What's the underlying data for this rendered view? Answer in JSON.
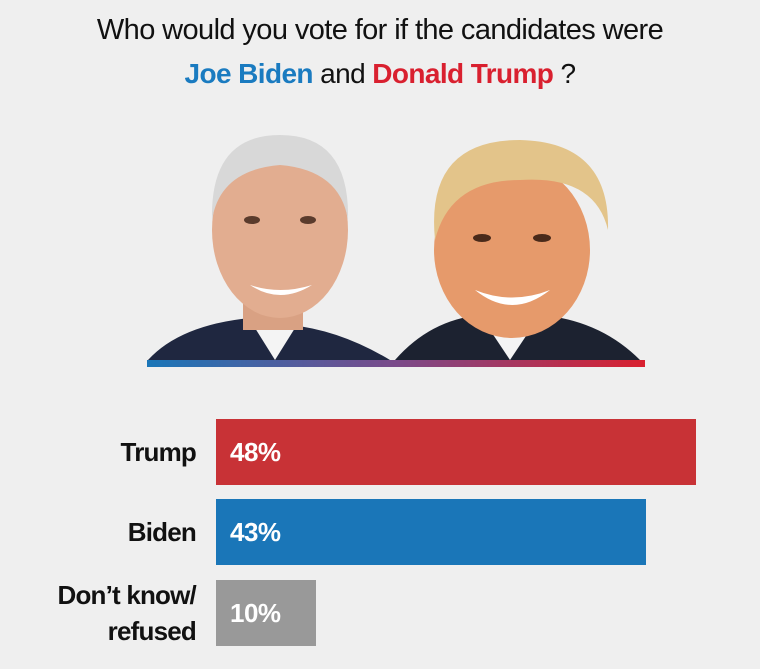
{
  "title": {
    "line1": "Who would you vote for if the candidates were",
    "candidate1": "Joe Biden",
    "connector": "and",
    "candidate2": "Donald Trump",
    "end": "?"
  },
  "colors": {
    "biden": "#1a76b8",
    "trump": "#c83236",
    "other": "#999999",
    "background": "#efefef"
  },
  "images": [
    "biden-portrait",
    "trump-portrait"
  ],
  "chart_data": {
    "type": "bar",
    "orientation": "horizontal",
    "categories": [
      "Trump",
      "Biden",
      "Don’t know/ refused"
    ],
    "category_lines": [
      [
        "Trump"
      ],
      [
        "Biden"
      ],
      [
        "Don’t know/",
        "refused"
      ]
    ],
    "values": [
      48,
      43,
      10
    ],
    "value_labels": [
      "48%",
      "43%",
      "10%"
    ],
    "unit": "%",
    "bar_colors": [
      "#c83236",
      "#1a76b8",
      "#999999"
    ],
    "grid": false
  }
}
